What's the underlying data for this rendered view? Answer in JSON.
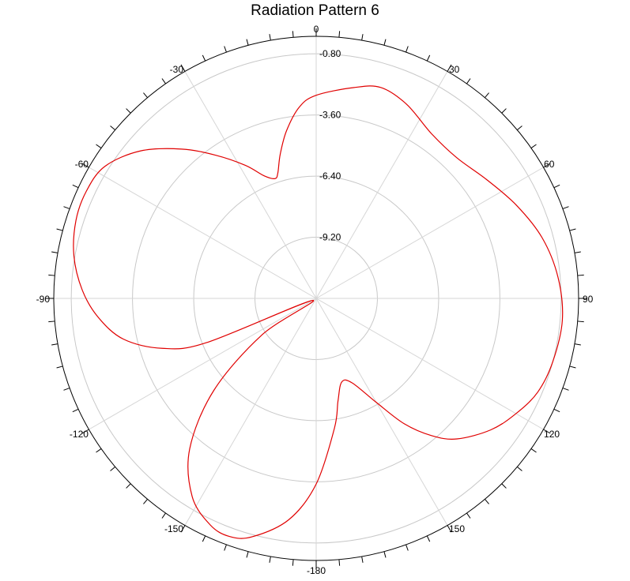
{
  "chart_data": {
    "type": "polar-line",
    "title": "Radiation Pattern 6",
    "angular_direction": "clockwise",
    "zero_location": "top",
    "rlim": [
      -12,
      0
    ],
    "radial_ticks": [
      -9.2,
      -6.4,
      -3.6,
      -0.8
    ],
    "radial_tick_labels": [
      "-9.20",
      "-6.40",
      "-3.60",
      "-0.80"
    ],
    "angle_tick_labels": [
      {
        "angle": 0,
        "label": "0"
      },
      {
        "angle": 30,
        "label": "30"
      },
      {
        "angle": 60,
        "label": "60"
      },
      {
        "angle": 90,
        "label": "90"
      },
      {
        "angle": 120,
        "label": "120"
      },
      {
        "angle": 150,
        "label": "150"
      },
      {
        "angle": 180,
        "label": "-180"
      },
      {
        "angle": -150,
        "label": "-150"
      },
      {
        "angle": -120,
        "label": "-120"
      },
      {
        "angle": -90,
        "label": "-90"
      },
      {
        "angle": -60,
        "label": "-60"
      },
      {
        "angle": -30,
        "label": "-30"
      }
    ],
    "grid": true,
    "series": [
      {
        "color": "#e00000",
        "theta": [
          0,
          10,
          17,
          25,
          35,
          45,
          55,
          65,
          75,
          85,
          95,
          105,
          113,
          120,
          127,
          135,
          140,
          145,
          150,
          157,
          163,
          168,
          172,
          180,
          187,
          195,
          200,
          205,
          212,
          220,
          228,
          236,
          242,
          248,
          252,
          258,
          265,
          272,
          280,
          288,
          295,
          302,
          310,
          318,
          325,
          332,
          337,
          341,
          343,
          346,
          350,
          355,
          360
        ],
        "r": [
          -2.7,
          -2.2,
          -1.9,
          -2.2,
          -2.8,
          -2.9,
          -2.5,
          -1.9,
          -1.3,
          -0.9,
          -0.7,
          -0.8,
          -1.0,
          -1.45,
          -2.0,
          -2.9,
          -3.8,
          -5.0,
          -6.5,
          -7.8,
          -8.0,
          -7.2,
          -6.0,
          -3.5,
          -1.8,
          -0.7,
          -0.4,
          -0.55,
          -1.3,
          -3.0,
          -5.7,
          -9.0,
          -11.8,
          -6.6,
          -4.6,
          -3.0,
          -2.0,
          -1.3,
          -0.75,
          -0.45,
          -0.4,
          -0.6,
          -1.5,
          -2.8,
          -4.0,
          -5.1,
          -5.9,
          -6.2,
          -6.0,
          -5.2,
          -4.2,
          -3.2,
          -2.7
        ]
      }
    ]
  }
}
